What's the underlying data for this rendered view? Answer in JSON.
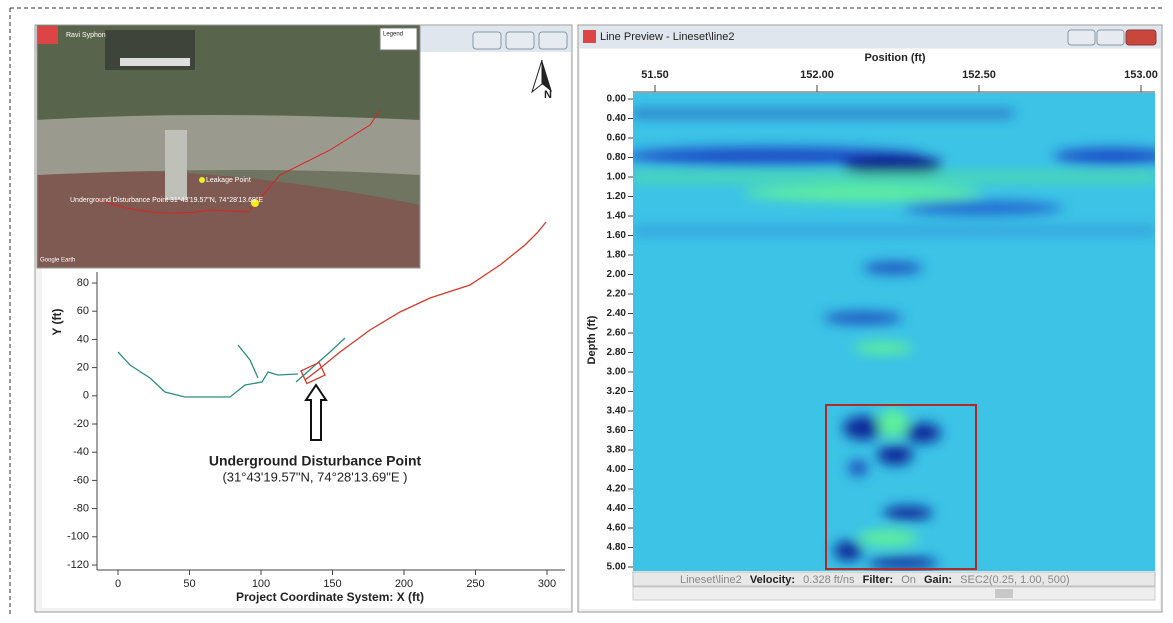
{
  "left_window": {
    "map_inset": {
      "title": "Ravi Syphon",
      "legend": "Legend",
      "leakage_label": "Leakage Point",
      "disturbance_label": "Underground Disturbance Point 31°43'19.57\"N, 74°28'13.69\"E",
      "credit": "Google Earth"
    },
    "north": "N",
    "plot": {
      "y_label": "Y (ft)",
      "x_label": "Project Coordinate System: X (ft)",
      "yticks": [
        80,
        60,
        40,
        20,
        0,
        -20,
        -40,
        -60,
        -80,
        -100,
        -120
      ],
      "xticks": [
        0,
        50,
        100,
        150,
        200,
        250,
        300
      ],
      "annotation_title": "Underground Disturbance Point",
      "annotation_coords": "(31°43'19.57\"N, 74°28'13.69\"E )"
    }
  },
  "right_window": {
    "title": "Line Preview - Lineset\\line2",
    "x_label": "Position (ft)",
    "xticks": [
      "51.50",
      "152.00",
      "152.50",
      "153.00"
    ],
    "y_label": "Depth (ft)",
    "yticks": [
      "0.00",
      "0.40",
      "0.60",
      "0.80",
      "1.00",
      "1.20",
      "1.40",
      "1.60",
      "1.80",
      "2.00",
      "2.20",
      "2.40",
      "2.60",
      "2.80",
      "3.00",
      "3.20",
      "3.40",
      "3.60",
      "3.80",
      "4.00",
      "4.20",
      "4.40",
      "4.60",
      "4.80",
      "5.00"
    ],
    "status": {
      "line": "Lineset\\line2",
      "velocity_label": "Velocity:",
      "velocity": "0.328 ft/ns",
      "filter_label": "Filter:",
      "filter": "On",
      "gain_label": "Gain:",
      "gain": "SEC2(0.25, 1.00, 500)"
    }
  }
}
